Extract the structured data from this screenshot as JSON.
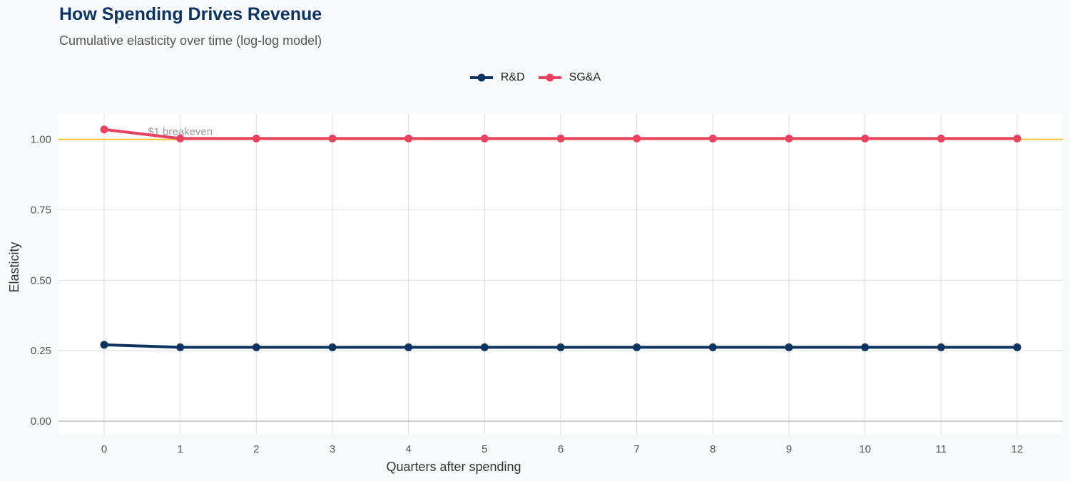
{
  "chart_data": {
    "type": "line",
    "title": "How Spending Drives Revenue",
    "subtitle": "Cumulative elasticity over time (log-log model)",
    "xlabel": "Quarters after spending",
    "ylabel": "Elasticity",
    "x": [
      0,
      1,
      2,
      3,
      4,
      5,
      6,
      7,
      8,
      9,
      10,
      11,
      12
    ],
    "xticks": [
      "0",
      "1",
      "2",
      "3",
      "4",
      "5",
      "6",
      "7",
      "8",
      "9",
      "10",
      "11",
      "12"
    ],
    "yticks": [
      0,
      0.25,
      0.5,
      0.75,
      1.0
    ],
    "ytick_labels": [
      "0.00",
      "0.25",
      "0.50",
      "0.75",
      "1.00"
    ],
    "xlim": [
      -0.6,
      12.6
    ],
    "ylim": [
      -0.048,
      1.09
    ],
    "grid": true,
    "legend_position": "top",
    "series": [
      {
        "name": "R&D",
        "color": "#0d3461",
        "values": [
          0.271,
          0.262,
          0.262,
          0.262,
          0.262,
          0.262,
          0.262,
          0.262,
          0.262,
          0.262,
          0.262,
          0.262,
          0.262
        ]
      },
      {
        "name": "SG&A",
        "color": "#e8435e",
        "values": [
          1.035,
          1.003,
          1.003,
          1.003,
          1.003,
          1.003,
          1.003,
          1.003,
          1.003,
          1.003,
          1.003,
          1.003,
          1.003
        ]
      }
    ],
    "reference_line": {
      "y": 1.0,
      "color": "#f5c242",
      "label": "$1 breakeven",
      "label_x": 1
    }
  }
}
